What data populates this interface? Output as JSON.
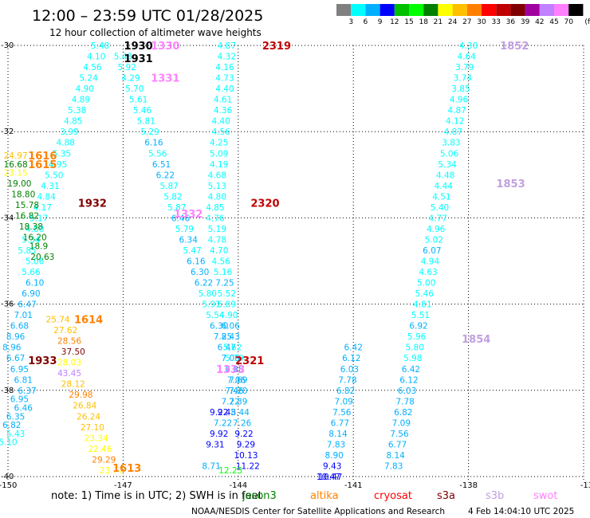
{
  "header": {
    "title": "12:00 – 23:59 UTC 01/28/2025",
    "subtitle": "12 hour collection of altimeter wave heights"
  },
  "color_scale": {
    "values": [
      "3",
      "6",
      "9",
      "12",
      "15",
      "18",
      "21",
      "24",
      "27",
      "30",
      "33",
      "36",
      "39",
      "42",
      "45",
      "70"
    ],
    "unit": "(ft)",
    "colors": [
      "#808080",
      "#00ffff",
      "#00b0ff",
      "#0000ff",
      "#00c000",
      "#00ff00",
      "#008000",
      "#ffff00",
      "#ffc000",
      "#ff8000",
      "#ff0000",
      "#c00000",
      "#800000",
      "#a000a0",
      "#c080ff",
      "#ff80ff",
      "#000000"
    ]
  },
  "chart_data": {
    "type": "scatter",
    "xlim": [
      -150,
      -135
    ],
    "ylim": [
      -40,
      -30
    ],
    "x_ticks": [
      "-150",
      "-147",
      "-144",
      "-141",
      "-138",
      "-13"
    ],
    "y_ticks": [
      "-30",
      "-32",
      "-34",
      "-36",
      "-38",
      "-40"
    ],
    "grid": "dotted",
    "tracks": [
      {
        "x": [
          -147.6,
          -147.7,
          -147.8,
          -147.9,
          -148,
          -148.1,
          -148.2,
          -148.3,
          -148.4,
          -148.5,
          -148.6,
          -148.7,
          -148.8,
          -148.9,
          -149.0,
          -149.1,
          -149.2,
          -149.3,
          -149.4,
          -149.5,
          -149.3,
          -149.4,
          -149.3,
          -149.4,
          -149.5,
          -149.6,
          -149.7,
          -149.8,
          -149.9,
          -149.8,
          -149.7,
          -149.6,
          -149.5,
          -149.7,
          -149.6,
          -149.8,
          -149.9,
          -149.8,
          -150.0
        ],
        "y": [
          -30.0,
          -30.25,
          -30.5,
          -30.75,
          -31.0,
          -31.25,
          -31.5,
          -31.75,
          -32.0,
          -32.25,
          -32.5,
          -32.75,
          -33.0,
          -33.25,
          -33.5,
          -33.75,
          -34.0,
          -34.25,
          -34.5,
          -34.75,
          -35.0,
          -35.25,
          -35.5,
          -35.75,
          -36.0,
          -36.25,
          -36.5,
          -36.75,
          -37.0,
          -37.25,
          -37.5,
          -37.75,
          -38.0,
          -38.2,
          -38.4,
          -38.6,
          -38.8,
          -39.0,
          -39.2
        ],
        "v": [
          "5.48",
          "4.10",
          "4.56",
          "5.24",
          "4.90",
          "4.89",
          "5.38",
          "4.85",
          "3.99",
          "4.88",
          "5.35",
          "4.95",
          "5.50",
          "4.31",
          "4.84",
          "4.17",
          "5.17",
          "4.80",
          "5.34",
          "5.85",
          "5.06",
          "5.66",
          "6.10",
          "6.90",
          "6.47",
          "7.01",
          "6.68",
          "8.96",
          "8.96",
          "6.67",
          "6.95",
          "6.81",
          "6.37",
          "6.95",
          "6.46",
          "6.35",
          "6.82",
          "5.43",
          "5.10"
        ]
      },
      {
        "x": [
          -147.0,
          -146.9,
          -146.8,
          -146.7,
          -146.6,
          -146.5,
          -146.4,
          -146.3,
          -146.2,
          -146.1,
          -146.0,
          -145.9,
          -145.8,
          -145.7,
          -145.6,
          -145.5,
          -145.4,
          -145.3,
          -145.2,
          -145.1,
          -145.0,
          -144.9,
          -144.8,
          -144.7,
          -144.6,
          -144.5,
          -144.4,
          -144.3,
          -144.2,
          -144.1,
          -144.0,
          -144.1,
          -144.2,
          -144.3,
          -144.4,
          -144.5,
          -144.6
        ],
        "y": [
          -30.25,
          -30.5,
          -30.75,
          -31.0,
          -31.25,
          -31.5,
          -31.75,
          -32.0,
          -32.25,
          -32.5,
          -32.75,
          -33.0,
          -33.25,
          -33.5,
          -33.75,
          -34.0,
          -34.25,
          -34.5,
          -34.75,
          -35.0,
          -35.25,
          -35.5,
          -35.75,
          -36.0,
          -36.25,
          -36.5,
          -36.75,
          -37.0,
          -37.25,
          -37.5,
          -37.75,
          -38.0,
          -38.25,
          -38.5,
          -38.75,
          -39.0,
          -39.25
        ],
        "v": [
          "5.43",
          "5.92",
          "4.29",
          "5.70",
          "5.61",
          "5.46",
          "5.81",
          "5.29",
          "6.16",
          "5.56",
          "6.51",
          "6.22",
          "5.87",
          "5.82",
          "5.87",
          "6.46",
          "5.79",
          "6.34",
          "5.47",
          "6.16",
          "6.30",
          "6.22",
          "5.80",
          "5.91",
          "5.54",
          "6.30",
          "7.25",
          "6.47",
          "7.06",
          "7.15",
          "7.69",
          "7.46",
          "7.22",
          "9.43",
          "7.22",
          "9.92",
          "9.31"
        ]
      },
      {
        "x": [
          -144.3,
          -144.3,
          -144.35,
          -144.35,
          -144.35,
          -144.4,
          -144.4,
          -144.45,
          -144.45,
          -144.5,
          -144.5,
          -144.5,
          -144.55,
          -144.55,
          -144.55,
          -144.6,
          -144.6,
          -144.55,
          -144.55,
          -144.5,
          -144.45,
          -144.4,
          -144.35,
          -144.3,
          -144.3,
          -144.25,
          -144.2,
          -144.2,
          -144.15,
          -144.1,
          -144.1,
          -144.05,
          -144.0,
          -144.0,
          -143.95,
          -143.9,
          -143.85,
          -143.8,
          -143.8,
          -143.75
        ],
        "y": [
          -30.0,
          -30.25,
          -30.5,
          -30.75,
          -31.0,
          -31.25,
          -31.5,
          -31.75,
          -32.0,
          -32.25,
          -32.5,
          -32.75,
          -33.0,
          -33.25,
          -33.5,
          -33.75,
          -34.0,
          -34.25,
          -34.5,
          -34.75,
          -35.0,
          -35.25,
          -35.5,
          -35.75,
          -36.0,
          -36.25,
          -36.5,
          -36.75,
          -37.0,
          -37.25,
          -37.5,
          -37.75,
          -38.0,
          -38.25,
          -38.5,
          -38.75,
          -39.0,
          -39.25,
          -39.5,
          -39.75
        ],
        "v": [
          "4.87",
          "4.32",
          "4.16",
          "4.73",
          "4.40",
          "4.61",
          "4.36",
          "4.40",
          "4.56",
          "4.25",
          "5.09",
          "4.19",
          "4.68",
          "5.13",
          "4.80",
          "4.85",
          "4.76",
          "5.19",
          "4.78",
          "4.70",
          "4.56",
          "5.16",
          "7.25",
          "5.52",
          "5.89",
          "4.90",
          "6.06",
          "8.43",
          "5.62",
          "5.79",
          "6.88",
          "7.06",
          "7.20",
          "7.39",
          "8.44",
          "7.26",
          "9.22",
          "9.29",
          "10.13",
          "11.22"
        ]
      },
      {
        "x": [
          -141.0,
          -141.05,
          -141.1,
          -141.15,
          -141.2,
          -141.25,
          -141.3,
          -141.35,
          -141.4,
          -141.45,
          -141.5,
          -141.55,
          -141.6,
          -141.65
        ],
        "y": [
          -37.0,
          -37.25,
          -37.5,
          -37.75,
          -38.0,
          -38.25,
          -38.5,
          -38.75,
          -39.0,
          -39.25,
          -39.5,
          -39.75,
          -40.0,
          -40.0
        ],
        "v": [
          "6.42",
          "6.12",
          "6.03",
          "7.78",
          "6.82",
          "7.09",
          "7.56",
          "6.77",
          "8.14",
          "7.83",
          "8.90",
          "9.43",
          "10.47",
          "10.47"
        ]
      },
      {
        "x": [
          -138.0,
          -138.05,
          -138.1,
          -138.15,
          -138.2,
          -138.25,
          -138.3,
          -138.35,
          -138.4,
          -138.45,
          -138.5,
          -138.55,
          -138.6,
          -138.65,
          -138.7,
          -138.75,
          -138.8,
          -138.85,
          -138.9,
          -138.95,
          -139.0,
          -139.05,
          -139.1,
          -139.15,
          -139.2,
          -139.25,
          -139.3,
          -139.35,
          -139.4,
          -139.45,
          -139.5,
          -139.55,
          -139.6,
          -139.65,
          -139.7,
          -139.75,
          -139.8,
          -139.85,
          -139.9,
          -139.95
        ],
        "y": [
          -30.0,
          -30.25,
          -30.5,
          -30.75,
          -31.0,
          -31.25,
          -31.5,
          -31.75,
          -32.0,
          -32.25,
          -32.5,
          -32.75,
          -33.0,
          -33.25,
          -33.5,
          -33.75,
          -34.0,
          -34.25,
          -34.5,
          -34.75,
          -35.0,
          -35.25,
          -35.5,
          -35.75,
          -36.0,
          -36.25,
          -36.5,
          -36.75,
          -37.0,
          -37.25,
          -37.5,
          -37.75,
          -38.0,
          -38.25,
          -38.5,
          -38.75,
          -39.0,
          -39.25,
          -39.5,
          -39.75
        ],
        "v": [
          "4.30",
          "4.64",
          "3.79",
          "3.74",
          "3.85",
          "4.96",
          "4.87",
          "4.12",
          "4.87",
          "3.83",
          "5.06",
          "5.34",
          "4.48",
          "4.44",
          "4.51",
          "5.40",
          "4.77",
          "4.96",
          "5.02",
          "6.07",
          "4.94",
          "4.63",
          "5.00",
          "5.46",
          "4.81",
          "5.51",
          "6.92",
          "5.96",
          "5.80",
          "5.98",
          "6.42",
          "6.12",
          "6.03",
          "7.78",
          "6.82",
          "7.09",
          "7.56",
          "6.77",
          "8.14",
          "7.83"
        ]
      }
    ],
    "track_labels": [
      {
        "text": "1930",
        "x": -146.6,
        "y": -30.0,
        "color": "#000000"
      },
      {
        "text": "1931",
        "x": -146.6,
        "y": -30.3,
        "color": "#000000"
      },
      {
        "text": "1330",
        "x": -145.9,
        "y": -30.0,
        "color": "#ff80ff"
      },
      {
        "text": "1331",
        "x": -145.9,
        "y": -30.75,
        "color": "#ff80ff"
      },
      {
        "text": "1332",
        "x": -145.3,
        "y": -33.9,
        "color": "#ff80ff"
      },
      {
        "text": "1333",
        "x": -144.2,
        "y": -37.5,
        "color": "#ff80ff"
      },
      {
        "text": "2319",
        "x": -143.0,
        "y": -30.0,
        "color": "#c00000"
      },
      {
        "text": "2320",
        "x": -143.3,
        "y": -33.65,
        "color": "#c00000"
      },
      {
        "text": "2321",
        "x": -143.7,
        "y": -37.3,
        "color": "#c00000"
      },
      {
        "text": "1616",
        "x": -149.1,
        "y": -32.55,
        "color": "#ff8000"
      },
      {
        "text": "1615",
        "x": -149.1,
        "y": -32.75,
        "color": "#ff8000"
      },
      {
        "text": "1614",
        "x": -147.9,
        "y": -36.35,
        "color": "#ff8000"
      },
      {
        "text": "1613",
        "x": -146.9,
        "y": -39.8,
        "color": "#ff8000"
      },
      {
        "text": "1932",
        "x": -147.8,
        "y": -33.65,
        "color": "#800000"
      },
      {
        "text": "1933",
        "x": -149.1,
        "y": -37.3,
        "color": "#800000"
      },
      {
        "text": "1852",
        "x": -136.8,
        "y": -30.0,
        "color": "#c0a0e0"
      },
      {
        "text": "1853",
        "x": -136.9,
        "y": -33.2,
        "color": "#c0a0e0"
      },
      {
        "text": "1854",
        "x": -137.8,
        "y": -36.8,
        "color": "#c0a0e0"
      }
    ],
    "hi_values": [
      {
        "text": "24.97",
        "x": -149.8,
        "y": -32.55,
        "color": "#ffc000"
      },
      {
        "text": "16.68",
        "x": -149.8,
        "y": -32.75,
        "color": "#008000"
      },
      {
        "text": "23.15",
        "x": -149.8,
        "y": -32.95,
        "color": "#ffff00"
      },
      {
        "text": "19.00",
        "x": -149.7,
        "y": -33.2,
        "color": "#008000"
      },
      {
        "text": "18.80",
        "x": -149.6,
        "y": -33.45,
        "color": "#008000"
      },
      {
        "text": "15.78",
        "x": -149.5,
        "y": -33.7,
        "color": "#008000"
      },
      {
        "text": "16.82",
        "x": -149.5,
        "y": -33.95,
        "color": "#008000"
      },
      {
        "text": "18.38",
        "x": -149.4,
        "y": -34.2,
        "color": "#008000"
      },
      {
        "text": "16.20",
        "x": -149.3,
        "y": -34.45,
        "color": "#008000"
      },
      {
        "text": "18.9",
        "x": -149.2,
        "y": -34.65,
        "color": "#008000"
      },
      {
        "text": "20.63",
        "x": -149.1,
        "y": -34.9,
        "color": "#008000"
      },
      {
        "text": "25.74",
        "x": -148.7,
        "y": -36.35,
        "color": "#ffc000"
      },
      {
        "text": "27.62",
        "x": -148.5,
        "y": -36.6,
        "color": "#ffc000"
      },
      {
        "text": "28.56",
        "x": -148.4,
        "y": -36.85,
        "color": "#ff8000"
      },
      {
        "text": "37.50",
        "x": -148.3,
        "y": -37.1,
        "color": "#800000"
      },
      {
        "text": "28.03",
        "x": -148.4,
        "y": -37.35,
        "color": "#ffff00"
      },
      {
        "text": "43.45",
        "x": -148.4,
        "y": -37.6,
        "color": "#c080ff"
      },
      {
        "text": "28.12",
        "x": -148.3,
        "y": -37.85,
        "color": "#ffc000"
      },
      {
        "text": "29.98",
        "x": -148.1,
        "y": -38.1,
        "color": "#ff8000"
      },
      {
        "text": "26.84",
        "x": -148.0,
        "y": -38.35,
        "color": "#ffc000"
      },
      {
        "text": "26.24",
        "x": -147.9,
        "y": -38.6,
        "color": "#ffc000"
      },
      {
        "text": "27.10",
        "x": -147.8,
        "y": -38.85,
        "color": "#ffc000"
      },
      {
        "text": "23.34",
        "x": -147.7,
        "y": -39.1,
        "color": "#ffff00"
      },
      {
        "text": "22.46",
        "x": -147.6,
        "y": -39.35,
        "color": "#ffff00"
      },
      {
        "text": "29.29",
        "x": -147.5,
        "y": -39.6,
        "color": "#ff8000"
      },
      {
        "text": "23.77",
        "x": -147.3,
        "y": -39.85,
        "color": "#ffff00"
      },
      {
        "text": "9.22",
        "x": -144.5,
        "y": -38.5,
        "color": "#0000ff"
      },
      {
        "text": "8.71",
        "x": -144.7,
        "y": -39.75,
        "color": "#00b0ff"
      },
      {
        "text": "12.23",
        "x": -144.2,
        "y": -39.85,
        "color": "#00ff00"
      }
    ]
  },
  "footer": {
    "note": "note:  1) Time is in UTC;  2) SWH is in feet",
    "legend": [
      {
        "name": "jason3",
        "color": "#008000"
      },
      {
        "name": "altika",
        "color": "#ff8000"
      },
      {
        "name": "cryosat",
        "color": "#ff0000"
      },
      {
        "name": "s3a",
        "color": "#800000"
      },
      {
        "name": "s3b",
        "color": "#c0a0e0"
      },
      {
        "name": "swot",
        "color": "#ff80ff"
      }
    ],
    "credit_left": "NOAA/NESDIS Center for Satellite Applications and Research",
    "credit_right": "4 Feb 14:04:10 UTC 2025"
  }
}
